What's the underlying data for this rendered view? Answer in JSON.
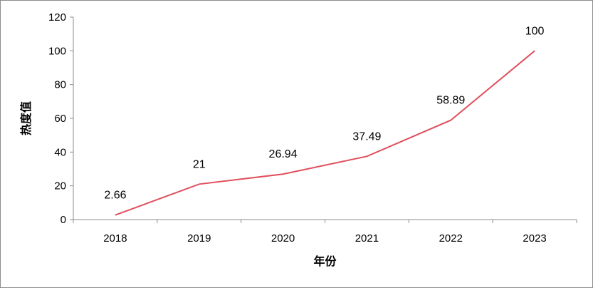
{
  "chart_data": {
    "type": "line",
    "title": "",
    "xlabel": "年份",
    "ylabel": "热度值",
    "categories": [
      "2018",
      "2019",
      "2020",
      "2021",
      "2022",
      "2023"
    ],
    "series": [
      {
        "values": [
          2.66,
          21,
          26.94,
          37.49,
          58.89,
          100
        ]
      }
    ],
    "data_labels": [
      "2.66",
      "21",
      "26.94",
      "37.49",
      "58.89",
      "100"
    ],
    "ylim": [
      0,
      120
    ],
    "yticks": [
      0,
      20,
      40,
      60,
      80,
      100,
      120
    ],
    "grid": false,
    "legend": "none",
    "line_color": "#e0505e",
    "axis_color": "#8c8c8c"
  }
}
